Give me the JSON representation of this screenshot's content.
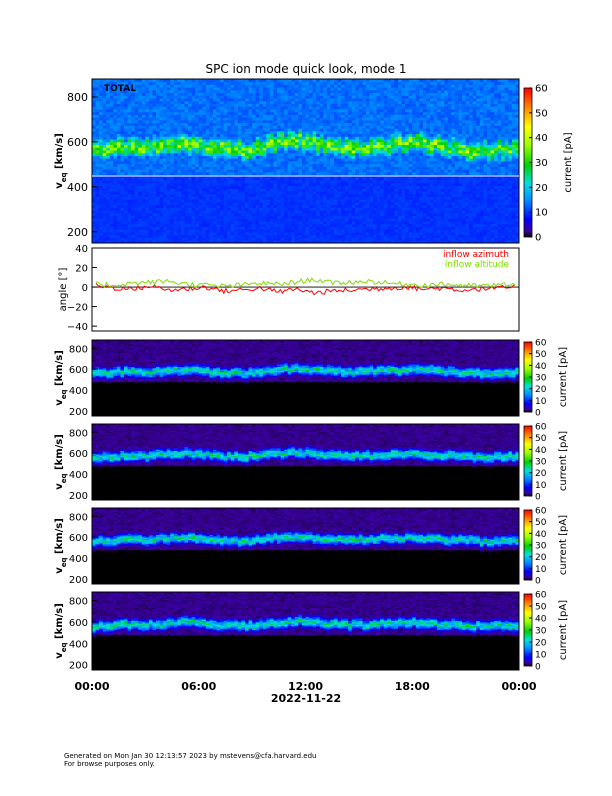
{
  "title": "SPC ion mode quick look, mode 1",
  "date_label": "2022-11-22",
  "time_ticks": [
    "00:00",
    "06:00",
    "12:00",
    "18:00",
    "00:00"
  ],
  "footer": {
    "line1": "Generated on Mon Jan 30 12:13:57 2023 by mstevens@cfa.harvard.edu",
    "line2": "For browse purposes only."
  },
  "colorbar": {
    "label": "current [pA]",
    "ticks_main": [
      "0",
      "10",
      "20",
      "30",
      "40",
      "50",
      "60"
    ],
    "ticks_small": [
      "0",
      "10",
      "20",
      "30",
      "40",
      "50",
      "60"
    ]
  },
  "velocity_axis": {
    "label": "v",
    "subscript": "eq",
    "unit": " [km/s]",
    "ticks_main": [
      "200",
      "400",
      "600",
      "800"
    ]
  },
  "chart_data": [
    {
      "type": "heatmap",
      "panel": "total",
      "annotation": "TOTAL",
      "xlabel": "",
      "ylabel": "v_eq [km/s]",
      "ylim": [
        150,
        880
      ],
      "zlim": [
        0,
        60
      ],
      "colormap": "rainbow",
      "core_speed_km_s": [
        560,
        570,
        580,
        575,
        590,
        600,
        585,
        570,
        560,
        580,
        600,
        610,
        590,
        580,
        575,
        580,
        590,
        600,
        590,
        580,
        570,
        560,
        565,
        570
      ]
    },
    {
      "type": "line",
      "panel": "angles",
      "xlabel": "",
      "ylabel": "angle [°]",
      "ylim": [
        -45,
        40
      ],
      "yticks": [
        "40",
        "20",
        "0",
        "−20",
        "−40"
      ],
      "series": [
        {
          "name": "inflow azimuth",
          "color": "#ff0000",
          "values": [
            2,
            -1,
            -2,
            1,
            -3,
            -2,
            0,
            -4,
            -3,
            -1,
            -5,
            -2,
            -6,
            -4,
            -3,
            -2,
            -1,
            0,
            -2,
            -1,
            -3,
            -2,
            -1,
            0
          ]
        },
        {
          "name": "inflow altitude",
          "color": "#7fdc00",
          "values": [
            3,
            2,
            4,
            5,
            6,
            3,
            2,
            1,
            2,
            4,
            3,
            5,
            8,
            4,
            5,
            6,
            4,
            3,
            2,
            3,
            2,
            1,
            2,
            3
          ]
        }
      ]
    },
    {
      "type": "heatmap",
      "panel": "sensor-1",
      "xlabel": "",
      "ylabel": "v_eq [km/s]",
      "ylim": [
        150,
        880
      ],
      "zlim": [
        0,
        60
      ],
      "colormap": "rainbow-dark",
      "yticks": [
        "200",
        "400",
        "600",
        "800"
      ],
      "core_speed_km_s": [
        560,
        570,
        580,
        575,
        590,
        600,
        585,
        570,
        560,
        580,
        600,
        610,
        590,
        580,
        575,
        580,
        590,
        600,
        590,
        580,
        570,
        560,
        565,
        570
      ]
    },
    {
      "type": "heatmap",
      "panel": "sensor-2",
      "xlabel": "",
      "ylabel": "v_eq [km/s]",
      "ylim": [
        150,
        880
      ],
      "zlim": [
        0,
        60
      ],
      "colormap": "rainbow-dark",
      "yticks": [
        "200",
        "400",
        "600",
        "800"
      ],
      "core_speed_km_s": [
        560,
        570,
        580,
        575,
        590,
        600,
        585,
        570,
        560,
        580,
        600,
        610,
        590,
        580,
        575,
        580,
        590,
        600,
        590,
        580,
        570,
        560,
        565,
        570
      ]
    },
    {
      "type": "heatmap",
      "panel": "sensor-3",
      "xlabel": "",
      "ylabel": "v_eq [km/s]",
      "ylim": [
        150,
        880
      ],
      "zlim": [
        0,
        60
      ],
      "colormap": "rainbow-dark",
      "yticks": [
        "200",
        "400",
        "600",
        "800"
      ],
      "core_speed_km_s": [
        560,
        570,
        580,
        575,
        590,
        600,
        585,
        570,
        560,
        580,
        600,
        610,
        590,
        580,
        575,
        580,
        590,
        600,
        590,
        580,
        570,
        560,
        565,
        570
      ]
    },
    {
      "type": "heatmap",
      "panel": "sensor-4",
      "xlabel": "",
      "ylabel": "v_eq [km/s]",
      "ylim": [
        150,
        880
      ],
      "zlim": [
        0,
        60
      ],
      "colormap": "rainbow-dark",
      "yticks": [
        "200",
        "400",
        "600",
        "800"
      ],
      "core_speed_km_s": [
        560,
        570,
        580,
        575,
        590,
        600,
        585,
        570,
        560,
        580,
        600,
        610,
        590,
        580,
        575,
        580,
        590,
        600,
        590,
        580,
        570,
        560,
        565,
        570
      ]
    }
  ]
}
